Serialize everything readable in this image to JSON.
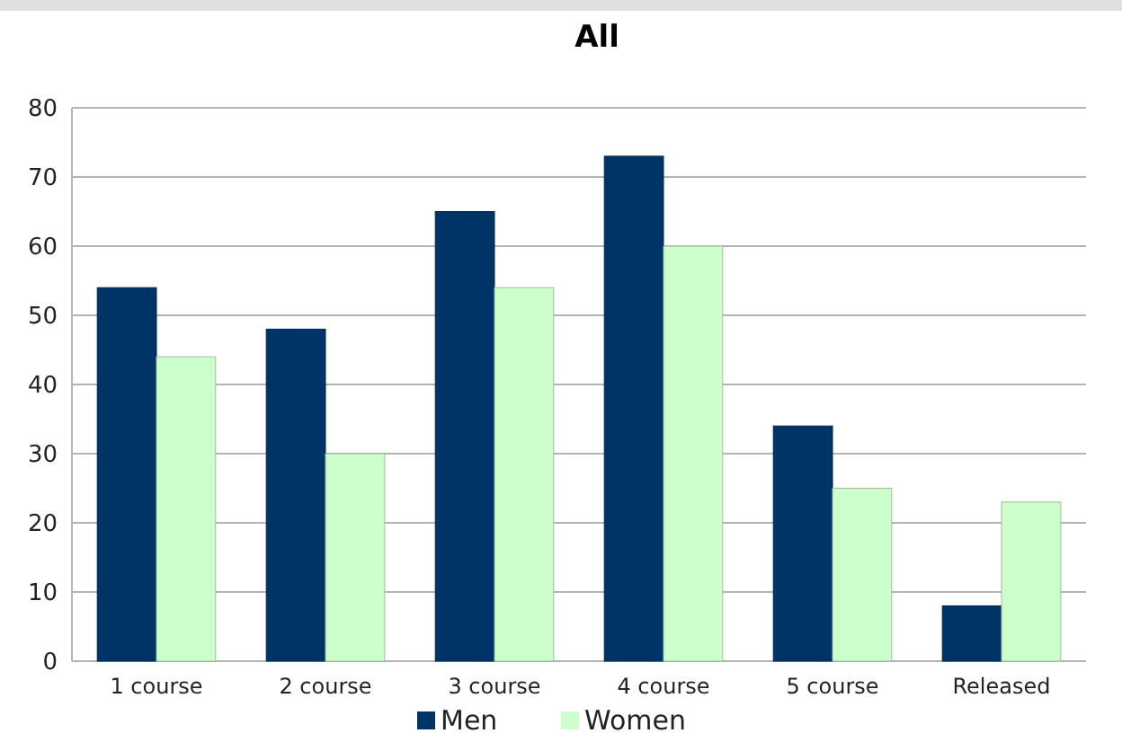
{
  "chart_data": {
    "type": "bar",
    "title": "All",
    "categories": [
      "1 course",
      "2 course",
      "3  course",
      "4 course",
      "5 course",
      "Released"
    ],
    "series": [
      {
        "name": "Men",
        "color": "#003366",
        "values": [
          54,
          48,
          65,
          73,
          34,
          8
        ]
      },
      {
        "name": "Women",
        "color": "#ccffcc",
        "values": [
          44,
          30,
          54,
          60,
          25,
          23
        ]
      }
    ],
    "ylim": [
      0,
      80
    ],
    "yticks": [
      0,
      10,
      20,
      30,
      40,
      50,
      60,
      70,
      80
    ],
    "grid": "y",
    "legend": "bottom"
  }
}
